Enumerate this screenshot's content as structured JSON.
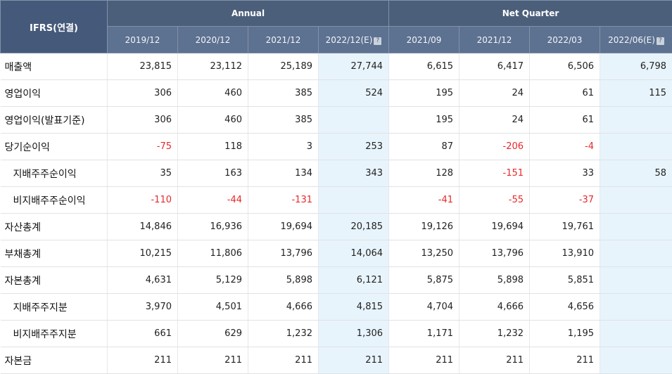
{
  "header": {
    "ifrs_label": "IFRS(연결)",
    "annual_label": "Annual",
    "quarter_label": "Net Quarter",
    "periods": [
      "2019/12",
      "2020/12",
      "2021/12",
      "2022/12(E)",
      "2021/09",
      "2021/12",
      "2022/03",
      "2022/06(E)"
    ],
    "help_icon": "question-icon"
  },
  "colors": {
    "negative": "#e8282a",
    "estimate_bg": "#e8f4fb",
    "header_bg": "#4b5f7a"
  },
  "rows": [
    {
      "label": "매출액",
      "sub": false,
      "values": [
        "23,815",
        "23,112",
        "25,189",
        "27,744",
        "6,615",
        "6,417",
        "6,506",
        "6,798"
      ]
    },
    {
      "label": "영업이익",
      "sub": false,
      "values": [
        "306",
        "460",
        "385",
        "524",
        "195",
        "24",
        "61",
        "115"
      ]
    },
    {
      "label": "영업이익(발표기준)",
      "sub": false,
      "values": [
        "306",
        "460",
        "385",
        "",
        "195",
        "24",
        "61",
        ""
      ]
    },
    {
      "label": "당기순이익",
      "sub": false,
      "values": [
        "-75",
        "118",
        "3",
        "253",
        "87",
        "-206",
        "-4",
        ""
      ]
    },
    {
      "label": "지배주주순이익",
      "sub": true,
      "values": [
        "35",
        "163",
        "134",
        "343",
        "128",
        "-151",
        "33",
        "58"
      ]
    },
    {
      "label": "비지배주주순이익",
      "sub": true,
      "values": [
        "-110",
        "-44",
        "-131",
        "",
        "-41",
        "-55",
        "-37",
        ""
      ]
    },
    {
      "label": "자산총계",
      "sub": false,
      "values": [
        "14,846",
        "16,936",
        "19,694",
        "20,185",
        "19,126",
        "19,694",
        "19,761",
        ""
      ]
    },
    {
      "label": "부채총계",
      "sub": false,
      "values": [
        "10,215",
        "11,806",
        "13,796",
        "14,064",
        "13,250",
        "13,796",
        "13,910",
        ""
      ]
    },
    {
      "label": "자본총계",
      "sub": false,
      "values": [
        "4,631",
        "5,129",
        "5,898",
        "6,121",
        "5,875",
        "5,898",
        "5,851",
        ""
      ]
    },
    {
      "label": "지배주주지분",
      "sub": true,
      "values": [
        "3,970",
        "4,501",
        "4,666",
        "4,815",
        "4,704",
        "4,666",
        "4,656",
        ""
      ]
    },
    {
      "label": "비지배주주지분",
      "sub": true,
      "values": [
        "661",
        "629",
        "1,232",
        "1,306",
        "1,171",
        "1,232",
        "1,195",
        ""
      ]
    },
    {
      "label": "자본금",
      "sub": false,
      "values": [
        "211",
        "211",
        "211",
        "211",
        "211",
        "211",
        "211",
        ""
      ]
    }
  ]
}
